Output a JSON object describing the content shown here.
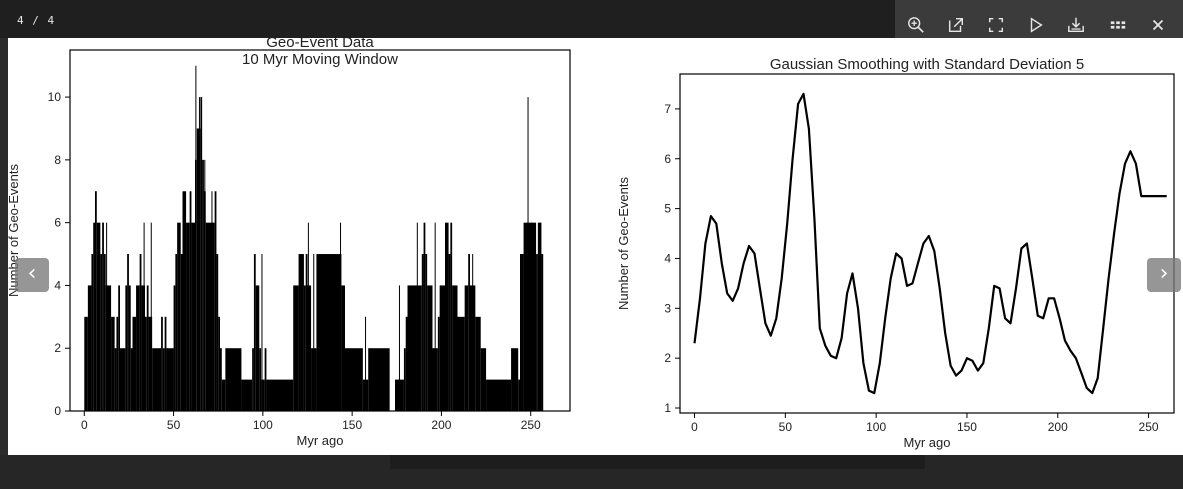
{
  "viewer": {
    "counter": "4 / 4",
    "toolbar": [
      "zoom-in-icon",
      "open-external-icon",
      "fullscreen-icon",
      "play-icon",
      "download-icon",
      "grid-icon",
      "close-icon"
    ],
    "prev_label": "‹",
    "next_label": "›"
  },
  "chart_data": [
    {
      "type": "bar",
      "title": "Geo-Event Data",
      "subtitle": "10 Myr Moving Window",
      "xlabel": "Myr ago",
      "ylabel": "Number of Geo-Events",
      "xlim": [
        -8,
        272
      ],
      "ylim": [
        0,
        11.5
      ],
      "xticks": [
        0,
        50,
        100,
        150,
        200,
        250
      ],
      "yticks": [
        0,
        2,
        4,
        6,
        8,
        10
      ],
      "bin_width": 1,
      "x_start": 0,
      "values": [
        3,
        3,
        4,
        4,
        5,
        6,
        7,
        6,
        6,
        5,
        6,
        5,
        4,
        4,
        4,
        3,
        3,
        2,
        3,
        4,
        2,
        2,
        2,
        4,
        5,
        4,
        2,
        3,
        3,
        4,
        4,
        5,
        4,
        4,
        3,
        4,
        3,
        3,
        2,
        2,
        2,
        2,
        2,
        3,
        2,
        3,
        2,
        2,
        2,
        2,
        4,
        5,
        6,
        6,
        5,
        7,
        7,
        6,
        6,
        7,
        6,
        6,
        8,
        9,
        9,
        10,
        8,
        7,
        6,
        6,
        6,
        6,
        6,
        7,
        5,
        3,
        2,
        1,
        1,
        2,
        2,
        2,
        2,
        2,
        2,
        2,
        2,
        2,
        1,
        1,
        1,
        1,
        1,
        1,
        2,
        5,
        4,
        4,
        2,
        1,
        1,
        2,
        1,
        1,
        1,
        1,
        1,
        1,
        1,
        1,
        1,
        1,
        1,
        1,
        1,
        1,
        1,
        4,
        4,
        4,
        5,
        5,
        5,
        4,
        5,
        4,
        4,
        2,
        2,
        2,
        5,
        5,
        5,
        5,
        5,
        5,
        5,
        5,
        5,
        5,
        5,
        5,
        5,
        5,
        4,
        4,
        2,
        2,
        2,
        2,
        2,
        2,
        2,
        2,
        2,
        2,
        1,
        1,
        1,
        2,
        2,
        2,
        2,
        2,
        2,
        2,
        2,
        2,
        2,
        2,
        2,
        0,
        0,
        0,
        1,
        1,
        1,
        1,
        1,
        2,
        3,
        4,
        4,
        4,
        4,
        4,
        4,
        4,
        4,
        5,
        6,
        5,
        4,
        4,
        4,
        2,
        2,
        2,
        3,
        4,
        4,
        4,
        6,
        6,
        5,
        6,
        4,
        4,
        4,
        3,
        3,
        3,
        3,
        4,
        4,
        5,
        4,
        4,
        4,
        3,
        3,
        3,
        2,
        2,
        2,
        1,
        1,
        1,
        1,
        1,
        1,
        1,
        1,
        1,
        1,
        1,
        1,
        1,
        1,
        2,
        2,
        2,
        2,
        1,
        5,
        5,
        6,
        6,
        6,
        6,
        6,
        6,
        6,
        5,
        6,
        6,
        5
      ],
      "spikes": [
        [
          6,
          7
        ],
        [
          10,
          6
        ],
        [
          12,
          6
        ],
        [
          33,
          6
        ],
        [
          37,
          6
        ],
        [
          46,
          2
        ],
        [
          62,
          11
        ],
        [
          64,
          10
        ],
        [
          67,
          8
        ],
        [
          71,
          7
        ],
        [
          99,
          5
        ],
        [
          125,
          6
        ],
        [
          128,
          5
        ],
        [
          143,
          6
        ],
        [
          157,
          3
        ],
        [
          176,
          4
        ],
        [
          186,
          6
        ],
        [
          196,
          6
        ],
        [
          217,
          5
        ],
        [
          248,
          10
        ],
        [
          250,
          6
        ],
        [
          255,
          6
        ]
      ]
    },
    {
      "type": "line",
      "title": "Gaussian Smoothing with Standard Deviation 5",
      "xlabel": "Myr ago",
      "ylabel": "Number of Geo-Events",
      "xlim": [
        -8,
        264
      ],
      "ylim": [
        0.9,
        7.7
      ],
      "xticks": [
        0,
        50,
        100,
        150,
        200,
        250
      ],
      "yticks": [
        1,
        2,
        3,
        4,
        5,
        6,
        7
      ],
      "x": [
        0,
        3,
        6,
        9,
        12,
        15,
        18,
        21,
        24,
        27,
        30,
        33,
        36,
        39,
        42,
        45,
        48,
        51,
        54,
        57,
        60,
        63,
        66,
        69,
        72,
        75,
        78,
        81,
        84,
        87,
        90,
        93,
        96,
        99,
        102,
        105,
        108,
        111,
        114,
        117,
        120,
        123,
        126,
        129,
        132,
        135,
        138,
        141,
        144,
        147,
        150,
        153,
        156,
        159,
        162,
        165,
        168,
        171,
        174,
        177,
        180,
        183,
        186,
        189,
        192,
        195,
        198,
        201,
        204,
        207,
        210,
        213,
        216,
        219,
        222,
        225,
        228,
        231,
        234,
        237,
        240,
        243,
        246,
        249,
        252,
        255,
        258,
        260
      ],
      "y": [
        2.3,
        3.2,
        4.3,
        4.85,
        4.7,
        3.9,
        3.3,
        3.15,
        3.4,
        3.9,
        4.25,
        4.1,
        3.4,
        2.7,
        2.45,
        2.8,
        3.6,
        4.7,
        6.0,
        7.1,
        7.3,
        6.6,
        4.8,
        2.6,
        2.25,
        2.05,
        2.0,
        2.4,
        3.3,
        3.7,
        3.0,
        1.9,
        1.35,
        1.3,
        1.9,
        2.8,
        3.6,
        4.1,
        4.0,
        3.45,
        3.5,
        3.9,
        4.3,
        4.45,
        4.15,
        3.4,
        2.5,
        1.85,
        1.65,
        1.75,
        2.0,
        1.95,
        1.75,
        1.9,
        2.6,
        3.45,
        3.4,
        2.8,
        2.7,
        3.4,
        4.2,
        4.3,
        3.6,
        2.85,
        2.8,
        3.2,
        3.2,
        2.8,
        2.35,
        2.15,
        2.0,
        1.7,
        1.4,
        1.3,
        1.6,
        2.6,
        3.6,
        4.5,
        5.3,
        5.9,
        6.15,
        5.9,
        5.25,
        5.25,
        5.25,
        5.25,
        5.25,
        5.25
      ]
    }
  ]
}
